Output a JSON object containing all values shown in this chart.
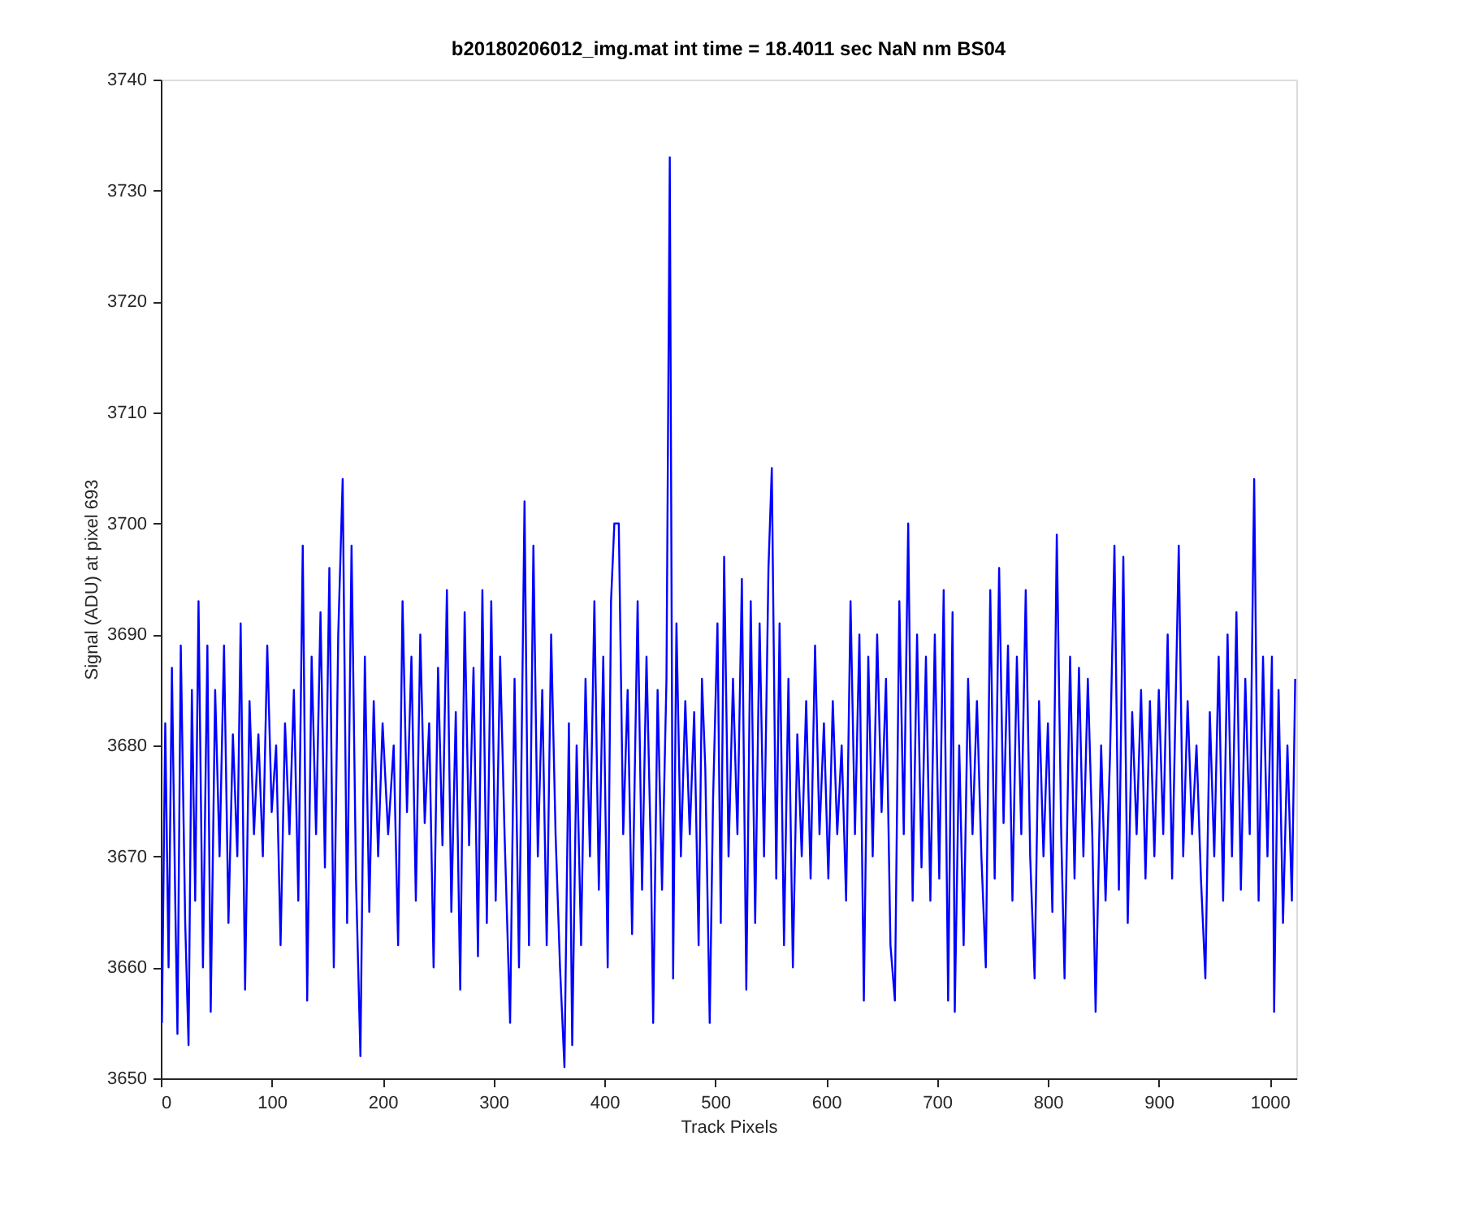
{
  "chart_data": {
    "type": "line",
    "title": "b20180206012_img.mat int time = 18.4011 sec  NaN nm BS04",
    "xlabel": "Track Pixels",
    "ylabel": "Signal (ADU) at pixel 693",
    "xlim": [
      0,
      1024
    ],
    "xticks": [
      0,
      100,
      200,
      300,
      400,
      500,
      600,
      700,
      800,
      900,
      1000
    ],
    "ylim": [
      3650,
      3740
    ],
    "yticks": [
      3650,
      3660,
      3670,
      3680,
      3690,
      3700,
      3710,
      3720,
      3730,
      3740
    ],
    "grid": false,
    "legend": false,
    "marker": "none",
    "line_style": "solid",
    "series": [
      {
        "color": "#0000ff",
        "x": [
          1,
          4,
          7,
          10,
          13,
          15,
          18,
          22,
          25,
          28,
          31,
          34,
          38,
          42,
          45,
          49,
          53,
          57,
          61,
          65,
          69,
          72,
          76,
          80,
          84,
          88,
          92,
          96,
          100,
          104,
          108,
          112,
          116,
          120,
          124,
          128,
          132,
          136,
          140,
          144,
          148,
          152,
          156,
          160,
          164,
          168,
          172,
          176,
          180,
          184,
          188,
          192,
          196,
          200,
          205,
          210,
          214,
          218,
          222,
          226,
          230,
          234,
          238,
          242,
          246,
          250,
          254,
          258,
          262,
          266,
          270,
          274,
          278,
          282,
          286,
          290,
          294,
          298,
          302,
          306,
          310,
          315,
          319,
          323,
          328,
          332,
          336,
          340,
          344,
          348,
          352,
          356,
          360,
          364,
          368,
          371,
          375,
          379,
          383,
          387,
          391,
          395,
          399,
          403,
          406,
          409,
          413,
          417,
          421,
          425,
          430,
          434,
          438,
          442,
          444,
          448,
          452,
          456,
          459,
          462,
          465,
          469,
          473,
          477,
          481,
          485,
          488,
          491,
          495,
          498,
          502,
          505,
          508,
          512,
          516,
          520,
          524,
          528,
          532,
          536,
          540,
          544,
          548,
          551,
          555,
          558,
          562,
          566,
          570,
          574,
          578,
          582,
          586,
          590,
          594,
          598,
          602,
          606,
          610,
          614,
          618,
          622,
          626,
          630,
          634,
          638,
          642,
          646,
          650,
          654,
          658,
          662,
          666,
          670,
          674,
          678,
          682,
          686,
          690,
          694,
          698,
          702,
          706,
          710,
          714,
          716,
          720,
          724,
          728,
          732,
          736,
          740,
          744,
          748,
          752,
          756,
          760,
          764,
          768,
          772,
          776,
          780,
          784,
          788,
          792,
          796,
          800,
          804,
          808,
          812,
          815,
          820,
          824,
          828,
          832,
          836,
          840,
          843,
          848,
          852,
          856,
          860,
          864,
          868,
          872,
          876,
          880,
          884,
          888,
          892,
          896,
          900,
          904,
          908,
          912,
          918,
          922,
          926,
          930,
          934,
          938,
          942,
          946,
          950,
          954,
          958,
          962,
          966,
          970,
          974,
          978,
          982,
          986,
          990,
          994,
          998,
          1002,
          1004,
          1008,
          1012,
          1016,
          1020,
          1023
        ],
        "values": [
          3655,
          3682,
          3660,
          3687,
          3666,
          3654,
          3689,
          3664,
          3653,
          3685,
          3666,
          3693,
          3660,
          3689,
          3656,
          3685,
          3670,
          3689,
          3664,
          3681,
          3670,
          3691,
          3658,
          3684,
          3672,
          3681,
          3670,
          3689,
          3674,
          3680,
          3662,
          3682,
          3672,
          3685,
          3666,
          3698,
          3657,
          3688,
          3672,
          3692,
          3669,
          3696,
          3660,
          3690,
          3704,
          3664,
          3698,
          3668,
          3652,
          3688,
          3665,
          3684,
          3670,
          3682,
          3672,
          3680,
          3662,
          3693,
          3674,
          3688,
          3666,
          3690,
          3673,
          3682,
          3660,
          3687,
          3671,
          3694,
          3665,
          3683,
          3658,
          3692,
          3671,
          3687,
          3661,
          3694,
          3664,
          3693,
          3666,
          3688,
          3672,
          3655,
          3686,
          3660,
          3702,
          3662,
          3698,
          3670,
          3685,
          3662,
          3690,
          3672,
          3660,
          3651,
          3682,
          3653,
          3680,
          3662,
          3686,
          3670,
          3693,
          3667,
          3688,
          3660,
          3693,
          3700,
          3700,
          3672,
          3685,
          3663,
          3693,
          3667,
          3688,
          3670,
          3655,
          3685,
          3667,
          3686,
          3733,
          3659,
          3691,
          3670,
          3684,
          3672,
          3683,
          3662,
          3686,
          3678,
          3655,
          3675,
          3691,
          3664,
          3697,
          3670,
          3686,
          3672,
          3695,
          3658,
          3693,
          3664,
          3691,
          3670,
          3696,
          3705,
          3668,
          3691,
          3662,
          3686,
          3660,
          3681,
          3670,
          3684,
          3668,
          3689,
          3672,
          3682,
          3668,
          3684,
          3672,
          3680,
          3666,
          3693,
          3672,
          3690,
          3657,
          3688,
          3670,
          3690,
          3674,
          3686,
          3662,
          3657,
          3693,
          3672,
          3700,
          3666,
          3690,
          3669,
          3688,
          3666,
          3690,
          3668,
          3694,
          3657,
          3692,
          3656,
          3680,
          3662,
          3686,
          3672,
          3684,
          3670,
          3660,
          3694,
          3668,
          3696,
          3673,
          3689,
          3666,
          3688,
          3672,
          3694,
          3670,
          3659,
          3684,
          3670,
          3682,
          3665,
          3699,
          3672,
          3659,
          3688,
          3668,
          3687,
          3670,
          3686,
          3672,
          3656,
          3680,
          3666,
          3679,
          3698,
          3667,
          3697,
          3664,
          3683,
          3672,
          3685,
          3668,
          3684,
          3670,
          3685,
          3672,
          3690,
          3668,
          3698,
          3670,
          3684,
          3672,
          3680,
          3668,
          3659,
          3683,
          3670,
          3688,
          3666,
          3690,
          3670,
          3692,
          3667,
          3686,
          3672,
          3704,
          3666,
          3688,
          3670,
          3688,
          3656,
          3685,
          3664,
          3680,
          3666,
          3686
        ]
      }
    ]
  }
}
